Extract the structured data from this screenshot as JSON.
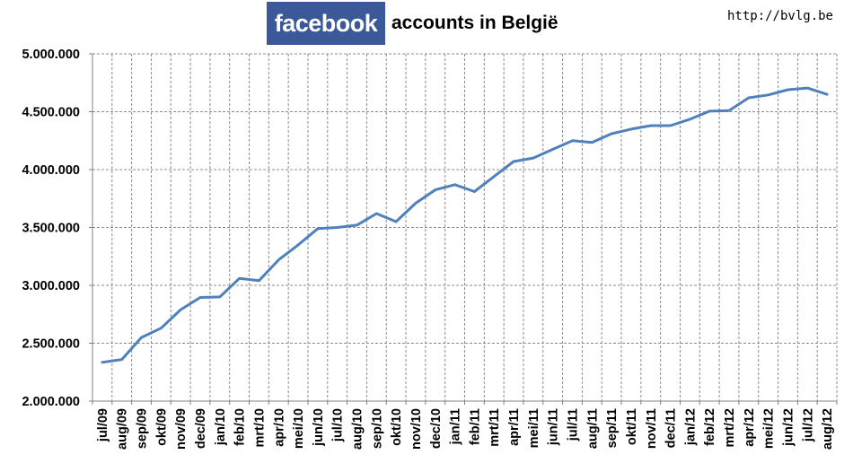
{
  "header": {
    "logo_text": "facebook",
    "title": "accounts in België",
    "url": "http://bvlg.be"
  },
  "colors": {
    "line": "#4f81bd",
    "logo_bg": "#3b5998",
    "grid": "#8c8c8c"
  },
  "chart_data": {
    "type": "line",
    "grid": true,
    "legend": "none",
    "ylim": [
      2000000,
      5000000
    ],
    "yticks": [
      2000000,
      2500000,
      3000000,
      3500000,
      4000000,
      4500000,
      5000000
    ],
    "ytick_labels": [
      "2.000.000",
      "2.500.000",
      "3.000.000",
      "3.500.000",
      "4.000.000",
      "4.500.000",
      "5.000.000"
    ],
    "categories": [
      "jul/09",
      "aug/09",
      "sep/09",
      "okt/09",
      "nov/09",
      "dec/09",
      "jan/10",
      "feb/10",
      "mrt/10",
      "apr/10",
      "mei/10",
      "jun/10",
      "jul/10",
      "aug/10",
      "sep/10",
      "okt/10",
      "nov/10",
      "dec/10",
      "jan/11",
      "feb/11",
      "mrt/11",
      "apr/11",
      "mei/11",
      "jun/11",
      "jul/11",
      "aug/11",
      "sep/11",
      "okt/11",
      "nov/11",
      "dec/11",
      "jan/12",
      "feb/12",
      "mrt/12",
      "apr/12",
      "mei/12",
      "jun/12",
      "jul/12",
      "aug/12"
    ],
    "series": [
      {
        "values": [
          2335000,
          2360000,
          2550000,
          2630000,
          2790000,
          2895000,
          2900000,
          3060000,
          3040000,
          3220000,
          3350000,
          3490000,
          3500000,
          3520000,
          3620000,
          3550000,
          3710000,
          3825000,
          3870000,
          3810000,
          3940000,
          4070000,
          4100000,
          4175000,
          4250000,
          4235000,
          4310000,
          4350000,
          4380000,
          4380000,
          4435000,
          4505000,
          4510000,
          4620000,
          4645000,
          4690000,
          4705000,
          4650000
        ]
      }
    ]
  }
}
